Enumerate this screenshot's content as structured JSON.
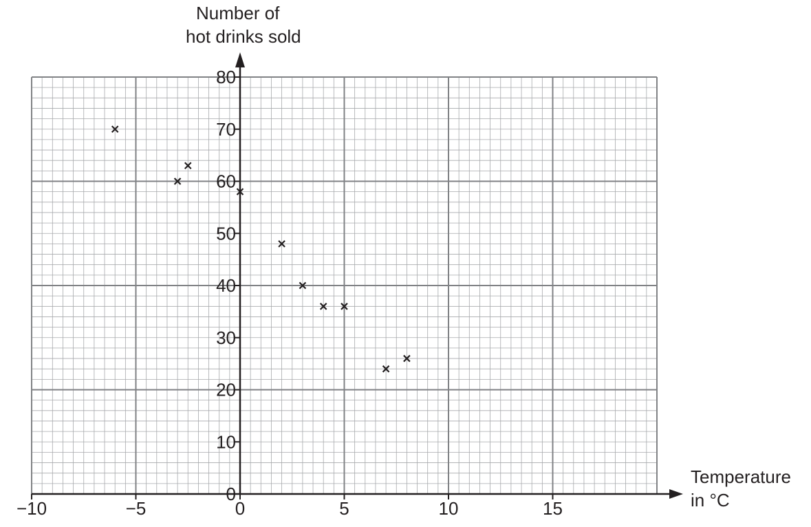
{
  "chart_data": {
    "type": "scatter",
    "title": "",
    "ylabel": [
      "Number of",
      "hot drinks sold"
    ],
    "xlabel": [
      "Temperature",
      "in °C"
    ],
    "xlim": [
      -10,
      20
    ],
    "ylim": [
      0,
      80
    ],
    "x_ticks": [
      -10,
      -5,
      0,
      5,
      10,
      15
    ],
    "x_tick_labels": [
      "−10",
      "−5",
      "0",
      "5",
      "10",
      "15"
    ],
    "y_ticks": [
      0,
      10,
      20,
      30,
      40,
      50,
      60,
      70,
      80
    ],
    "y_tick_labels": [
      "0",
      "10",
      "20",
      "30",
      "40",
      "50",
      "60",
      "70",
      "80"
    ],
    "grid": {
      "major_step_x": 5,
      "major_step_y": 20,
      "minor_per_major": 10
    },
    "marker": "cross",
    "points": [
      {
        "x": -6,
        "y": 70
      },
      {
        "x": -3,
        "y": 60
      },
      {
        "x": -2.5,
        "y": 63
      },
      {
        "x": 0,
        "y": 58
      },
      {
        "x": 2,
        "y": 48
      },
      {
        "x": 3,
        "y": 40
      },
      {
        "x": 4,
        "y": 36
      },
      {
        "x": 5,
        "y": 36
      },
      {
        "x": 7,
        "y": 24
      },
      {
        "x": 8,
        "y": 26
      }
    ],
    "colors": {
      "ink": "#231f20",
      "minor_grid": "#a7a9ac",
      "major_grid": "#808285"
    }
  }
}
